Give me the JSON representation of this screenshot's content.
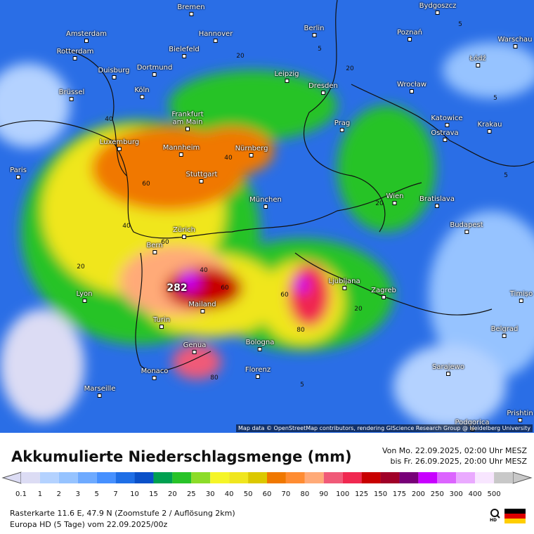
{
  "map": {
    "cities": [
      "Bremen",
      "Berlin",
      "Bydgoszcz",
      "Amsterdam",
      "Hannover",
      "Poznań",
      "Warschau",
      "Rotterdam",
      "Bielefeld",
      "Łódź",
      "Duisburg",
      "Dortmund",
      "Leipzig",
      "Dresden",
      "Wrocław",
      "Brüssel",
      "Köln",
      "Frankfurt am Main",
      "Prag",
      "Katowice",
      "Krakau",
      "Ostrava",
      "Luxemburg",
      "Mannheim",
      "Nürnberg",
      "Paris",
      "Stuttgart",
      "Wien",
      "Bratislava",
      "München",
      "Budapest",
      "Zürich",
      "Bern",
      "Ljubljana",
      "Zagreb",
      "Lyon",
      "Timișo",
      "Mailand",
      "Turin",
      "Belgrad",
      "Genua",
      "Bologna",
      "Sarajewo",
      "Monaco",
      "Florenz",
      "Marseille",
      "Podgorica",
      "Prishtin"
    ],
    "contour_labels": [
      5,
      5,
      5,
      20,
      20,
      20,
      40,
      40,
      40,
      60,
      60,
      60,
      80,
      80,
      20,
      5,
      5,
      40,
      20,
      60
    ],
    "max_label": "282",
    "attribution": "Map data © OpenStreetMap contributors, rendering GIScience Research Group @ Heidelberg University"
  },
  "legend": {
    "title": "Akkumulierte Niederschlagsmenge (mm)",
    "period": [
      "Von Mo. 22.09.2025, 02:00 Uhr MESZ",
      "bis Fr. 26.09.2025, 20:00 Uhr MESZ"
    ],
    "levels": [
      {
        "value": 0.1,
        "color": "#dcdcf4"
      },
      {
        "value": 1,
        "color": "#b4d2ff"
      },
      {
        "value": 2,
        "color": "#96c3ff"
      },
      {
        "value": 3,
        "color": "#6eaaff"
      },
      {
        "value": 5,
        "color": "#4690ff"
      },
      {
        "value": 7,
        "color": "#1e6ee6"
      },
      {
        "value": 10,
        "color": "#0a50c8"
      },
      {
        "value": 15,
        "color": "#00a050"
      },
      {
        "value": 20,
        "color": "#28c328"
      },
      {
        "value": 25,
        "color": "#8cdc28"
      },
      {
        "value": 30,
        "color": "#f5f528"
      },
      {
        "value": 40,
        "color": "#f0e61e"
      },
      {
        "value": 50,
        "color": "#dcc800"
      },
      {
        "value": 60,
        "color": "#f07800"
      },
      {
        "value": 70,
        "color": "#ff8c32"
      },
      {
        "value": 80,
        "color": "#ffaa78"
      },
      {
        "value": 90,
        "color": "#f05a78"
      },
      {
        "value": 100,
        "color": "#f02850"
      },
      {
        "value": 125,
        "color": "#c80000"
      },
      {
        "value": 150,
        "color": "#a00028"
      },
      {
        "value": 175,
        "color": "#780078"
      },
      {
        "value": 200,
        "color": "#c800ff"
      },
      {
        "value": 250,
        "color": "#dc64ff"
      },
      {
        "value": 300,
        "color": "#eaaaff"
      },
      {
        "value": 400,
        "color": "#f8e6ff"
      },
      {
        "value": 500,
        "color": "#c8c8c8"
      }
    ],
    "footer": [
      "Rasterkarte 11.6 E, 47.9 N (Zoomstufe 2 / Auflösung 2km)",
      "Europa HD (5 Tage) vom  22.09.2025/00z"
    ],
    "icon_label": "HD"
  }
}
